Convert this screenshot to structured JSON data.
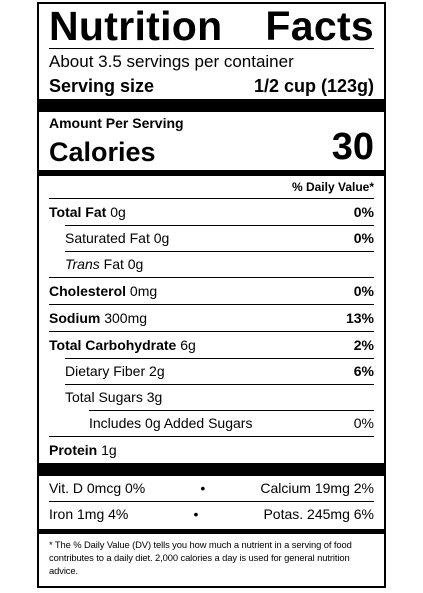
{
  "title_left": "Nutrition",
  "title_right": "Facts",
  "servings_per_container": "About 3.5 servings per container",
  "serving_size_label": "Serving size",
  "serving_size_value": "1/2 cup (123g)",
  "amount_per_serving": "Amount Per Serving",
  "calories_label": "Calories",
  "calories_value": "30",
  "daily_value_header": "% Daily Value*",
  "nutrients": {
    "total_fat": {
      "name": "Total Fat",
      "amount": "0g",
      "dv": "0%"
    },
    "saturated_fat": {
      "name": "Saturated Fat",
      "amount": "0g",
      "dv": "0%"
    },
    "trans_fat": {
      "name": "Trans",
      "suffix": "Fat",
      "amount": "0g"
    },
    "cholesterol": {
      "name": "Cholesterol",
      "amount": "0mg",
      "dv": "0%"
    },
    "sodium": {
      "name": "Sodium",
      "amount": "300mg",
      "dv": "13%"
    },
    "total_carb": {
      "name": "Total Carbohydrate",
      "amount": "6g",
      "dv": "2%"
    },
    "dietary_fiber": {
      "name": "Dietary Fiber",
      "amount": "2g",
      "dv": "6%"
    },
    "total_sugars": {
      "name": "Total Sugars",
      "amount": "3g"
    },
    "added_sugars": {
      "text": "Includes 0g Added Sugars",
      "dv": "0%"
    },
    "protein": {
      "name": "Protein",
      "amount": "1g"
    }
  },
  "vitamins": {
    "vit_d": "Vit. D 0mcg 0%",
    "calcium": "Calcium 19mg 2%",
    "iron": "Iron 1mg 4%",
    "potassium": "Potas. 245mg 6%",
    "bullet": "•"
  },
  "footnote": "* The % Daily Value (DV) tells you how much a nutrient in a serving of food contributes to a daily diet. 2,000 calories a day is used for general nutrition advice."
}
